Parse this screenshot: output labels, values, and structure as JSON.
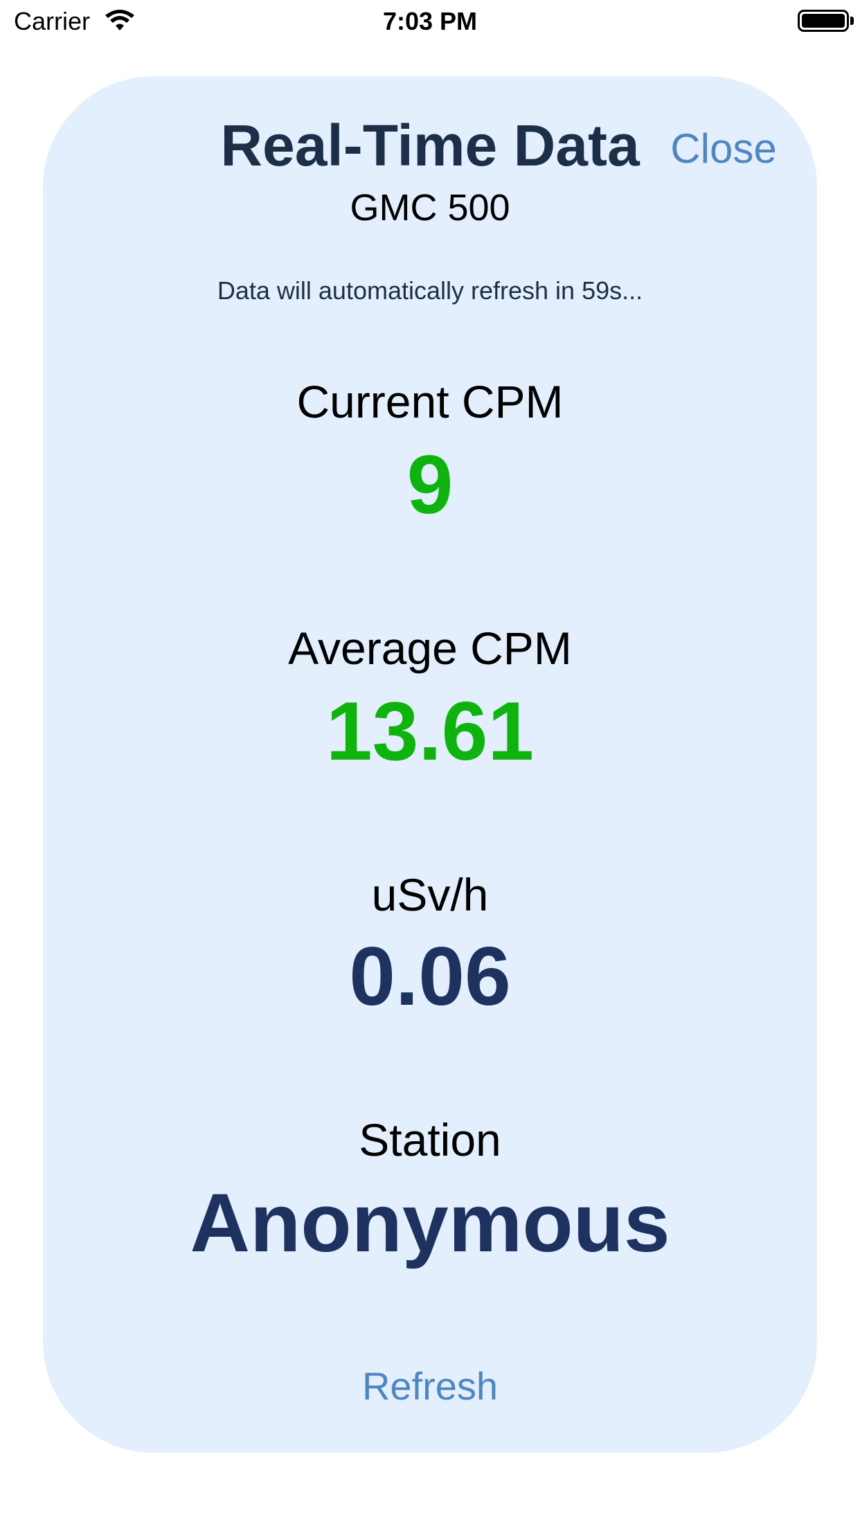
{
  "status_bar": {
    "carrier": "Carrier",
    "time": "7:03 PM"
  },
  "header": {
    "title": "Real-Time Data",
    "close_label": "Close",
    "device_name": "GMC 500",
    "refresh_note": "Data will automatically refresh in 59s..."
  },
  "metrics": {
    "current_cpm": {
      "label": "Current CPM",
      "value": "9"
    },
    "average_cpm": {
      "label": "Average CPM",
      "value": "13.61"
    },
    "usvh": {
      "label": "uSv/h",
      "value": "0.06"
    },
    "station": {
      "label": "Station",
      "value": "Anonymous"
    }
  },
  "footer": {
    "refresh_label": "Refresh"
  },
  "colors": {
    "card_background": "#e3effc",
    "accent_link": "#4f86c0",
    "value_green": "#0eb30e",
    "value_navy": "#1e3260",
    "title_text": "#1d2e48"
  },
  "icons": {
    "wifi": "wifi-icon",
    "battery": "battery-icon"
  }
}
